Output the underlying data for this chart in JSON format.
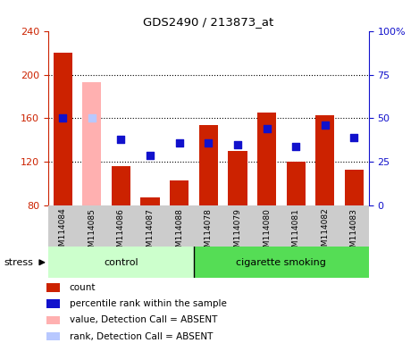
{
  "title": "GDS2490 / 213873_at",
  "samples": [
    "GSM114084",
    "GSM114085",
    "GSM114086",
    "GSM114087",
    "GSM114088",
    "GSM114078",
    "GSM114079",
    "GSM114080",
    "GSM114081",
    "GSM114082",
    "GSM114083"
  ],
  "counts": [
    220,
    80,
    116,
    88,
    103,
    154,
    130,
    165,
    120,
    163,
    113
  ],
  "ranks": [
    50,
    50,
    38,
    29,
    36,
    36,
    35,
    44,
    34,
    46,
    39
  ],
  "absent_mask": [
    false,
    true,
    false,
    false,
    false,
    false,
    false,
    false,
    false,
    false,
    false
  ],
  "absent_count": [
    null,
    193,
    null,
    null,
    null,
    null,
    null,
    null,
    null,
    null,
    null
  ],
  "absent_rank": [
    null,
    50,
    null,
    null,
    null,
    null,
    null,
    null,
    null,
    null,
    null
  ],
  "groups": [
    "control",
    "control",
    "control",
    "control",
    "control",
    "cigarette smoking",
    "cigarette smoking",
    "cigarette smoking",
    "cigarette smoking",
    "cigarette smoking",
    "cigarette smoking"
  ],
  "ymin": 80,
  "ymax": 240,
  "yticks_left": [
    80,
    120,
    160,
    200,
    240
  ],
  "yticks_right_vals": [
    0,
    25,
    50,
    75,
    100
  ],
  "yticks_right_labels": [
    "0",
    "25",
    "50",
    "75",
    "100%"
  ],
  "color_count": "#cc2200",
  "color_rank": "#1111cc",
  "color_absent_count": "#ffb0b0",
  "color_absent_rank": "#b8c8ff",
  "color_control_bg": "#ccffcc",
  "color_smoking_bg": "#55dd55",
  "color_xticklabels_bg": "#cccccc",
  "rank_scale_min": 0,
  "rank_scale_max": 100,
  "legend_labels": [
    "count",
    "percentile rank within the sample",
    "value, Detection Call = ABSENT",
    "rank, Detection Call = ABSENT"
  ],
  "legend_colors": [
    "#cc2200",
    "#1111cc",
    "#ffb0b0",
    "#b8c8ff"
  ]
}
